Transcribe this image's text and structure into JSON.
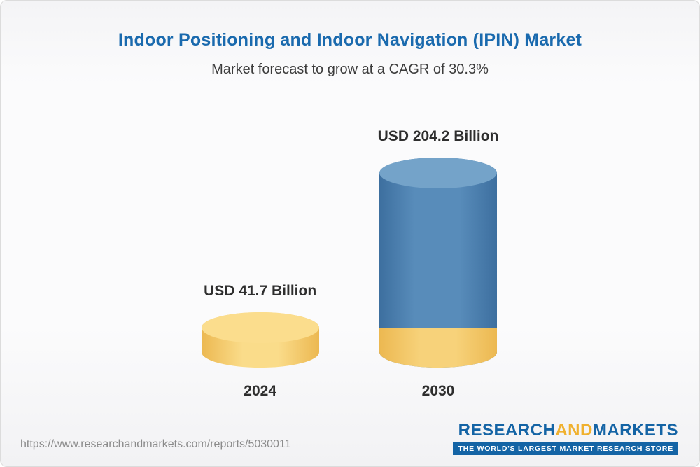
{
  "header": {
    "title": "Indoor Positioning and Indoor Navigation (IPIN) Market",
    "subtitle": "Market forecast to grow at a CAGR of 30.3%"
  },
  "chart_data": {
    "type": "bar",
    "variant": "3d-cylinder",
    "title": "Indoor Positioning and Indoor Navigation (IPIN) Market",
    "subtitle": "Market forecast to grow at a CAGR of 30.3%",
    "cagr_percent": 30.3,
    "unit": "USD Billion",
    "categories": [
      "2024",
      "2030"
    ],
    "values": [
      41.7,
      204.2
    ],
    "value_labels": [
      "USD 41.7 Billion",
      "USD 204.2 Billion"
    ],
    "ylim": [
      0,
      204.2
    ],
    "grid": false,
    "legend": false,
    "layout_hint": "2030 cylinder shows the 2024 value as a yellow segment at its base",
    "colors": {
      "title": "#1a6aae",
      "bar_2024": "#f7cf6f",
      "bar_2024_lid": "#fbdd8d",
      "bar_2030": "#4d80ae",
      "bar_2030_lid": "#74a3c9",
      "bar_2030_base_segment": "#f7d27a",
      "logo_blue": "#1464a5",
      "logo_gold": "#f0b12f"
    }
  },
  "footer": {
    "source_url": "https://www.researchandmarkets.com/reports/5030011",
    "logo": {
      "part1": "RESEARCH",
      "part2": "AND",
      "part3": "MARKETS",
      "tagline": "THE WORLD'S LARGEST MARKET RESEARCH STORE"
    }
  }
}
